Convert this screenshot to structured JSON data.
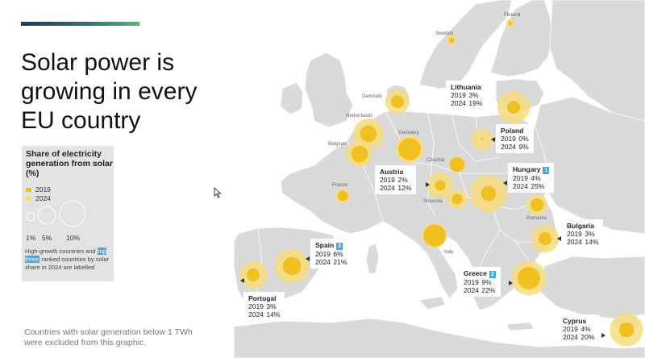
{
  "title_lines": [
    "Solar power is",
    "growing in every",
    "EU country"
  ],
  "legend": {
    "title": "Share of electricity generation from solar (%)",
    "year_2019": "2019",
    "year_2024": "2024",
    "color_2019": "#f0c020",
    "color_2024": "#f7dc7e",
    "sizes": [
      "1%",
      "5%",
      "10%"
    ],
    "note_before": "High-growth countries and ",
    "note_highlight": "top three",
    "note_after": " ranked countries by solar share in 2024 are labelled"
  },
  "footnote": "Countries with solar generation below 1 TWh were excluded from this graphic.",
  "map_labels": {
    "finland": "Finland",
    "sweden": "Sweden",
    "denmark": "Denmark",
    "netherlands": "Netherlands",
    "belgium": "Belgium",
    "germany": "Germany",
    "czechia": "Czechia",
    "france": "France",
    "slovenia": "Slovenia",
    "romania": "Romania",
    "italy": "Italy"
  },
  "callouts": {
    "lithuania": {
      "name": "Lithuania",
      "y2019_label": "2019",
      "y2019": "3%",
      "y2024_label": "2024",
      "y2024": "19%",
      "rank": ""
    },
    "poland": {
      "name": "Poland",
      "y2019_label": "2019",
      "y2019": "0%",
      "y2024_label": "2024",
      "y2024": "9%",
      "rank": ""
    },
    "austria": {
      "name": "Austria",
      "y2019_label": "2019",
      "y2019": "2%",
      "y2024_label": "2024",
      "y2024": "12%",
      "rank": ""
    },
    "hungary": {
      "name": "Hungary",
      "y2019_label": "2019",
      "y2019": "4%",
      "y2024_label": "2024",
      "y2024": "25%",
      "rank": "1"
    },
    "bulgaria": {
      "name": "Bulgaria",
      "y2019_label": "2019",
      "y2019": "3%",
      "y2024_label": "2024",
      "y2024": "14%",
      "rank": ""
    },
    "spain": {
      "name": "Spain",
      "y2019_label": "2019",
      "y2019": "6%",
      "y2024_label": "2024",
      "y2024": "21%",
      "rank": "3"
    },
    "greece": {
      "name": "Greece",
      "y2019_label": "2019",
      "y2019": "9%",
      "y2024_label": "2024",
      "y2024": "22%",
      "rank": "2"
    },
    "portugal": {
      "name": "Portugal",
      "y2019_label": "2019",
      "y2019": "3%",
      "y2024_label": "2024",
      "y2024": "14%",
      "rank": ""
    },
    "cyprus": {
      "name": "Cyprus",
      "y2019_label": "2019",
      "y2019": "4%",
      "y2024_label": "2024",
      "y2024": "20%",
      "rank": ""
    }
  },
  "bubbles": [
    {
      "country": "Finland",
      "s2019": 0.3,
      "s2024": 1.5
    },
    {
      "country": "Sweden",
      "s2019": 0.5,
      "s2024": 2
    },
    {
      "country": "Denmark",
      "s2019": 3,
      "s2024": 11
    },
    {
      "country": "Lithuania",
      "s2019": 3,
      "s2024": 19
    },
    {
      "country": "Netherlands",
      "s2019": 5,
      "s2024": 17
    },
    {
      "country": "Belgium",
      "s2019": 5,
      "s2024": 12
    },
    {
      "country": "Germany",
      "s2019": 9,
      "s2024": 14
    },
    {
      "country": "Poland",
      "s2019": 0,
      "s2024": 9
    },
    {
      "country": "Czechia",
      "s2019": 4,
      "s2024": 5
    },
    {
      "country": "France",
      "s2019": 2,
      "s2024": 4
    },
    {
      "country": "Austria",
      "s2019": 2,
      "s2024": 12
    },
    {
      "country": "Hungary",
      "s2019": 4,
      "s2024": 25
    },
    {
      "country": "Slovenia",
      "s2019": 2,
      "s2024": 7
    },
    {
      "country": "Romania",
      "s2019": 3,
      "s2024": 8
    },
    {
      "country": "Italy",
      "s2019": 9,
      "s2024": 11
    },
    {
      "country": "Bulgaria",
      "s2019": 3,
      "s2024": 14
    },
    {
      "country": "Spain",
      "s2019": 6,
      "s2024": 21
    },
    {
      "country": "Portugal",
      "s2019": 3,
      "s2024": 14
    },
    {
      "country": "Greece",
      "s2019": 9,
      "s2024": 22
    },
    {
      "country": "Cyprus",
      "s2019": 4,
      "s2024": 20
    }
  ],
  "colors": {
    "land": "#dadada",
    "border": "#ffffff",
    "sea": "#ffffff"
  }
}
